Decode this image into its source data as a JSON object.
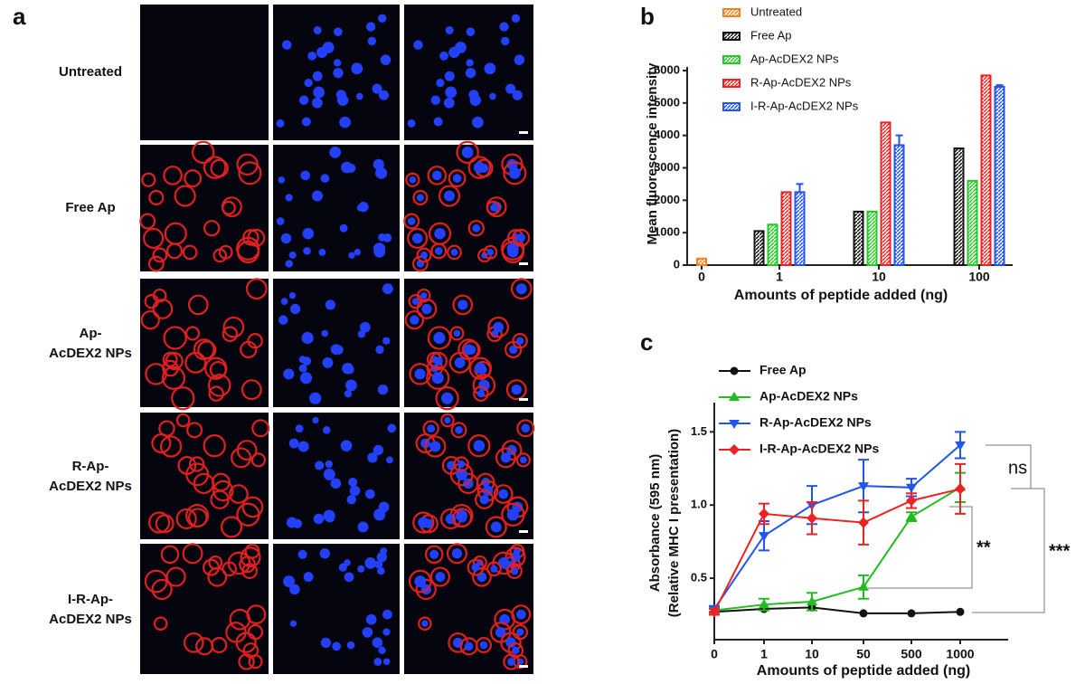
{
  "panel_a": {
    "label": "a",
    "rows": [
      [
        "Untreated"
      ],
      [
        "Free Ap"
      ],
      [
        "Ap-",
        "AcDEX2 NPs"
      ],
      [
        "R-Ap-",
        "AcDEX2 NPs"
      ],
      [
        "I-R-Ap-",
        "AcDEX2 NPs"
      ]
    ]
  },
  "chart_data": [
    {
      "type": "bar",
      "panel_label": "b",
      "y_label": "Mean fluorescence intensity",
      "x_label": "Amounts of peptide added (ng)",
      "categories": [
        "0",
        "1",
        "10",
        "100"
      ],
      "series": [
        {
          "name": "Untreated",
          "color": "#f58220",
          "values": [
            200,
            null,
            null,
            null
          ]
        },
        {
          "name": "Free Ap",
          "color": "#111111",
          "values": [
            null,
            1050,
            1650,
            3600
          ]
        },
        {
          "name": "Ap-AcDEX2 NPs",
          "color": "#22cc22",
          "values": [
            null,
            1250,
            1650,
            2600
          ]
        },
        {
          "name": "R-Ap-AcDEX2 NPs",
          "color": "#ee2222",
          "values": [
            null,
            2250,
            4400,
            5850
          ]
        },
        {
          "name": "I-R-Ap-AcDEX2 NPs",
          "color": "#2255ee",
          "values": [
            null,
            2250,
            3700,
            5500
          ],
          "errors": [
            null,
            250,
            300,
            50
          ]
        }
      ],
      "ylim": [
        0,
        6000
      ],
      "yticks": [
        0,
        1000,
        2000,
        3000,
        4000,
        5000,
        6000
      ]
    },
    {
      "type": "line",
      "panel_label": "c",
      "y_label": [
        "Absorbance (595 nm)",
        "(Relative MHC I presentation)"
      ],
      "x_label": "Amounts of peptide added (ng)",
      "categories": [
        "0",
        "1",
        "10",
        "50",
        "500",
        "1000"
      ],
      "series": [
        {
          "name": "Free Ap",
          "color": "#111111",
          "marker": "circle",
          "values": [
            0.27,
            0.29,
            0.3,
            0.26,
            0.26,
            0.27
          ]
        },
        {
          "name": "Ap-AcDEX2 NPs",
          "color": "#22bb22",
          "marker": "triangle-up",
          "values": [
            0.28,
            0.32,
            0.34,
            0.44,
            0.92,
            1.12
          ],
          "errors": [
            0.02,
            0.04,
            0.06,
            0.08,
            0.03,
            0.1
          ]
        },
        {
          "name": "R-Ap-AcDEX2 NPs",
          "color": "#2255ee",
          "marker": "triangle-down",
          "values": [
            0.29,
            0.79,
            1.0,
            1.13,
            1.12,
            1.41
          ],
          "errors": [
            0.02,
            0.1,
            0.13,
            0.18,
            0.06,
            0.09
          ]
        },
        {
          "name": "I-R-Ap-AcDEX2 NPs",
          "color": "#ee2222",
          "marker": "diamond",
          "values": [
            0.27,
            0.94,
            0.91,
            0.88,
            1.03,
            1.11
          ],
          "errors": [
            0.02,
            0.07,
            0.11,
            0.15,
            0.05,
            0.17
          ]
        }
      ],
      "ylim": [
        0.08,
        1.7
      ],
      "yticks": [
        {
          "value": 0.5,
          "label": "0.5"
        },
        {
          "value": 1,
          "label": "1.0"
        },
        {
          "value": 1.5,
          "label": "1.5"
        }
      ],
      "annotations": [
        "ns",
        "**",
        "***"
      ]
    }
  ]
}
